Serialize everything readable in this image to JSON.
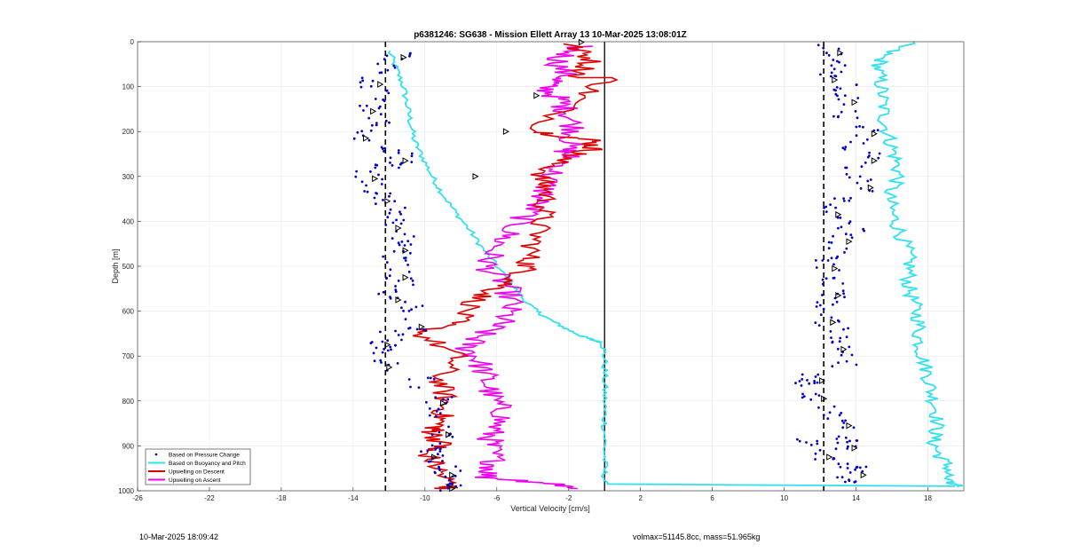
{
  "chart_data": {
    "type": "line",
    "title": "p6381246: SG638 - Mission Ellett Array 13 10-Mar-2025 13:08:01Z",
    "xlabel": "Vertical Velocity [cm/s]",
    "ylabel": "Depth [m]",
    "xlim": [
      -26,
      20
    ],
    "ylim": [
      0,
      1000
    ],
    "y_reversed": true,
    "grid": true,
    "xticks": [
      -26,
      -22,
      -18,
      -14,
      -10,
      -6,
      -2,
      2,
      6,
      10,
      14,
      18
    ],
    "yticks": [
      0,
      100,
      200,
      300,
      400,
      500,
      600,
      700,
      800,
      900,
      1000
    ],
    "legend_position": "bottom-left",
    "reference_lines": [
      {
        "style": "dashed",
        "x": -12.2
      },
      {
        "style": "solid",
        "x": 0
      },
      {
        "style": "dashed",
        "x": 12.2
      }
    ],
    "series": [
      {
        "name": "Based on Pressure Change",
        "marker": "dot",
        "color": "#0000cc",
        "dive_x": [
          -11.5,
          -12,
          -12.8,
          -12.4,
          -13.2,
          -12.6,
          -13.6,
          -12.2,
          -11.4,
          -12.1,
          -13.1,
          -12.6,
          -12.4,
          -11.4,
          -11.8,
          -11.3,
          -11.4,
          -11.6,
          -11.4,
          -10.9,
          -11.8,
          -10.7,
          -10.5,
          -12.0,
          -12.4,
          -12.2,
          -12.3,
          -10.2,
          -9.3,
          -9.7,
          -9.0,
          -9.6,
          -9.8,
          -9.0,
          -8.8,
          -8.8,
          -8.8
        ],
        "dive_y": [
          30,
          60,
          90,
          120,
          150,
          180,
          210,
          240,
          260,
          280,
          300,
          330,
          350,
          380,
          410,
          440,
          460,
          490,
          520,
          545,
          570,
          600,
          630,
          655,
          670,
          690,
          720,
          760,
          800,
          830,
          870,
          900,
          920,
          940,
          960,
          980,
          990
        ],
        "climb_x": [
          12.7,
          13.0,
          12.4,
          13.3,
          13.5,
          13.3,
          14.6,
          14.0,
          14.6,
          14.0,
          14.4,
          13.1,
          12.6,
          13.7,
          13.2,
          13.0,
          12.4,
          12.9,
          12.6,
          12.2,
          12.3,
          13.2,
          12.9,
          13.4,
          11.7,
          11.3,
          11.8,
          12.4,
          13.2,
          13.4,
          13.5,
          11.3,
          12.1,
          13.8,
          14.0,
          13.6
        ],
        "climb_y": [
          20,
          50,
          80,
          100,
          130,
          160,
          200,
          230,
          260,
          290,
          320,
          350,
          380,
          410,
          440,
          470,
          500,
          530,
          560,
          590,
          620,
          650,
          680,
          710,
          750,
          760,
          790,
          820,
          850,
          880,
          900,
          890,
          920,
          940,
          960,
          980
        ]
      },
      {
        "name": "Based on Buoyancy and Pitch",
        "color": "#33e0f0",
        "x": [
          -12.0,
          -11.6,
          -11.2,
          -11.0,
          -10.8,
          -10.6,
          -10.1,
          -9.6,
          -9.0,
          -8.3,
          -7.5,
          -6.8,
          -6.0,
          -5.2,
          -4.6,
          -3.8,
          -3.0,
          -2.1,
          -1.3,
          -0.6,
          -0.1,
          0,
          0,
          0,
          0,
          0,
          0,
          0,
          19.5
        ],
        "y": [
          20,
          60,
          100,
          140,
          180,
          220,
          260,
          300,
          340,
          380,
          420,
          460,
          500,
          540,
          570,
          600,
          620,
          640,
          655,
          665,
          670,
          700,
          750,
          800,
          850,
          900,
          950,
          985,
          990
        ],
        "climb_x": [
          17.0,
          15.5,
          15.2,
          15.4,
          15.5,
          15.6,
          15.9,
          16.2,
          16.4,
          15.8,
          16.0,
          16.4,
          16.8,
          17.0,
          16.9,
          17.2,
          17.5,
          17.5,
          17.7,
          18.0,
          18.2,
          18.5,
          18.5,
          18.3,
          18.6,
          19.2,
          19.0,
          19.6
        ],
        "climb_y": [
          0,
          30,
          60,
          100,
          140,
          180,
          220,
          260,
          300,
          340,
          380,
          420,
          460,
          500,
          540,
          580,
          620,
          660,
          700,
          740,
          780,
          820,
          860,
          890,
          920,
          950,
          980,
          990
        ]
      },
      {
        "name": "Upwelling on Descent",
        "color": "#dd0000",
        "x": [
          -2.0,
          -0.7,
          -1.5,
          0.4,
          -1.6,
          -3.8,
          -0.7,
          -0.7,
          -2.4,
          -3.6,
          -3.2,
          -3.4,
          -3.8,
          -4.2,
          -4.4,
          -5.5,
          -7.0,
          -8.2,
          -10.3,
          -8.2,
          -9.2,
          -8.9,
          -9.0,
          -9.4,
          -9.6,
          -9.0,
          -10.0,
          -9.3,
          -8.6,
          -8.8
        ],
        "y": [
          5,
          40,
          80,
          80,
          130,
          200,
          220,
          240,
          260,
          300,
          330,
          380,
          430,
          480,
          510,
          540,
          570,
          620,
          650,
          700,
          750,
          790,
          830,
          860,
          870,
          900,
          910,
          950,
          990,
          995
        ],
        "descent_points_x": [
          -1.3,
          -3.8,
          -5.5,
          -7.2
        ],
        "descent_points_y": [
          1,
          120,
          200,
          300
        ]
      },
      {
        "name": "Upwelling on Ascent",
        "color": "#ee00ee",
        "x": [
          -1.4,
          -2.6,
          -2.2,
          -3.4,
          -2.5,
          -2.0,
          -1.6,
          -2.2,
          -2.0,
          -3.1,
          -3.4,
          -4.2,
          -5.2,
          -6.1,
          -6.6,
          -5.5,
          -5.2,
          -5.6,
          -6.8,
          -7.7,
          -7.0,
          -6.6,
          -6.3,
          -5.6,
          -6.3,
          -6.4,
          -6.1,
          -6.6,
          -2.6,
          -1.5
        ],
        "y": [
          10,
          40,
          80,
          100,
          130,
          160,
          200,
          240,
          260,
          300,
          340,
          380,
          420,
          460,
          500,
          540,
          580,
          620,
          650,
          680,
          710,
          750,
          790,
          830,
          870,
          900,
          940,
          970,
          985,
          995
        ]
      }
    ]
  },
  "footer": {
    "timestamp": "10-Mar-2025 18:09:42",
    "vol_mass": "volmax=51145.8cc, mass=51.965kg"
  }
}
